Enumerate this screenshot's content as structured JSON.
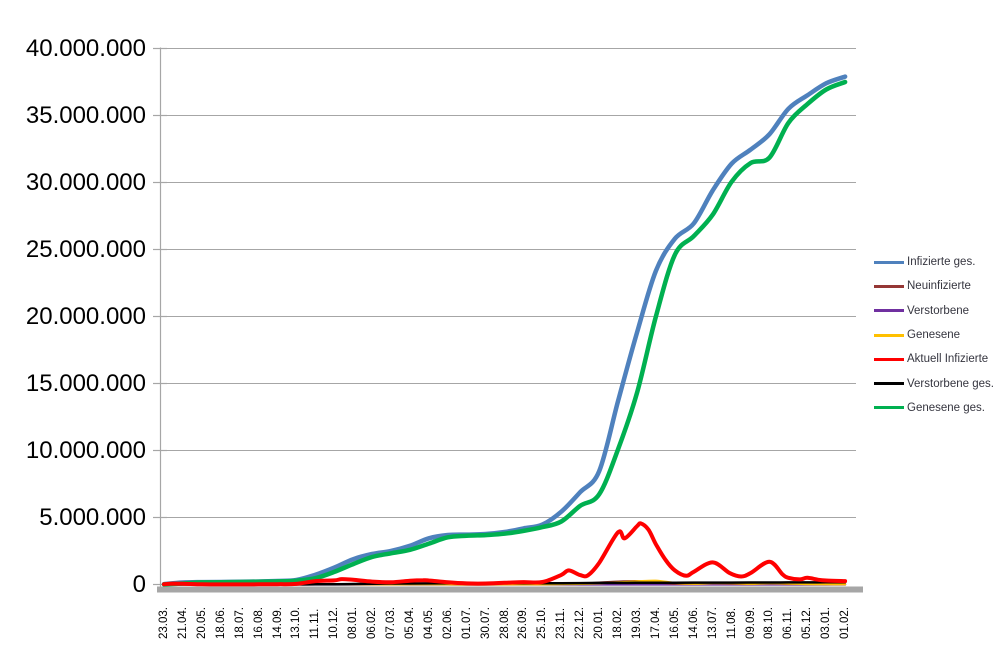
{
  "chart_data": {
    "type": "line",
    "title": "",
    "xlabel": "",
    "ylabel": "",
    "grid": "horizontal",
    "legend_position": "right",
    "ylim": [
      0,
      40000000
    ],
    "y_tick_step": 5000000,
    "y_tick_labels": [
      "0",
      "5.000.000",
      "10.000.000",
      "15.000.000",
      "20.000.000",
      "25.000.000",
      "30.000.000",
      "35.000.000",
      "40.000.000"
    ],
    "x_tick_labels": [
      "23.03.",
      "21.04.",
      "20.05.",
      "18.06.",
      "18.07.",
      "16.08.",
      "14.09.",
      "13.10.",
      "11.11.",
      "10.12.",
      "08.01.",
      "06.02.",
      "07.03.",
      "05.04.",
      "04.05.",
      "02.06.",
      "01.07.",
      "30.07.",
      "28.08.",
      "26.09.",
      "25.10.",
      "23.11.",
      "22.12.",
      "20.01.",
      "18.02.",
      "19.03.",
      "17.04.",
      "16.05.",
      "14.06.",
      "13.07.",
      "11.08.",
      "09.09.",
      "08.10.",
      "06.11.",
      "05.12.",
      "03.01.",
      "01.02."
    ],
    "axis_color": "#a6a6a6",
    "gridline_color": "#a6a6a6",
    "series": [
      {
        "name": "Infizierte ges.",
        "color": "#4F81BD",
        "width": 4.5,
        "points": [
          [
            0,
            30000
          ],
          [
            1,
            148000
          ],
          [
            2,
            178000
          ],
          [
            3,
            190000
          ],
          [
            4,
            202000
          ],
          [
            5,
            226000
          ],
          [
            6,
            261000
          ],
          [
            7,
            335000
          ],
          [
            8,
            727000
          ],
          [
            9,
            1261000
          ],
          [
            10,
            1891000
          ],
          [
            11,
            2276000
          ],
          [
            12,
            2505000
          ],
          [
            13,
            2885000
          ],
          [
            14,
            3448000
          ],
          [
            15,
            3693000
          ],
          [
            16,
            3727000
          ],
          [
            17,
            3770000
          ],
          [
            18,
            3920000
          ],
          [
            19,
            4185000
          ],
          [
            20,
            4472000
          ],
          [
            21,
            5430000
          ],
          [
            22,
            6894000
          ],
          [
            23,
            8460000
          ],
          [
            24,
            13700000
          ],
          [
            25,
            18800000
          ],
          [
            26,
            23400000
          ],
          [
            27,
            25800000
          ],
          [
            28,
            26950000
          ],
          [
            29,
            29400000
          ],
          [
            30,
            31400000
          ],
          [
            31,
            32450000
          ],
          [
            32,
            33600000
          ],
          [
            33,
            35500000
          ],
          [
            34,
            36500000
          ],
          [
            35,
            37400000
          ],
          [
            36,
            37900000
          ]
        ]
      },
      {
        "name": "Neuinfizierte",
        "color": "#953735",
        "width": 2.2,
        "points": [
          [
            0,
            4000
          ],
          [
            1,
            2000
          ],
          [
            2,
            700
          ],
          [
            3,
            500
          ],
          [
            4,
            500
          ],
          [
            5,
            1500
          ],
          [
            6,
            1800
          ],
          [
            7,
            7000
          ],
          [
            8,
            21000
          ],
          [
            9,
            26000
          ],
          [
            10,
            22000
          ],
          [
            11,
            10000
          ],
          [
            12,
            9000
          ],
          [
            13,
            18000
          ],
          [
            14,
            16000
          ],
          [
            15,
            5000
          ],
          [
            16,
            1000
          ],
          [
            17,
            2500
          ],
          [
            18,
            9000
          ],
          [
            19,
            8000
          ],
          [
            20,
            12000
          ],
          [
            21,
            50000
          ],
          [
            22,
            45000
          ],
          [
            23,
            140000
          ],
          [
            24,
            220000
          ],
          [
            25,
            250000
          ],
          [
            26,
            165000
          ],
          [
            27,
            55000
          ],
          [
            28,
            50000
          ],
          [
            29,
            120000
          ],
          [
            30,
            65000
          ],
          [
            31,
            40000
          ],
          [
            32,
            110000
          ],
          [
            33,
            40000
          ],
          [
            34,
            32000
          ],
          [
            35,
            18000
          ],
          [
            36,
            14000
          ]
        ]
      },
      {
        "name": "Verstorbene",
        "color": "#7030A0",
        "width": 2.2,
        "points": [
          [
            0,
            300
          ],
          [
            1,
            250
          ],
          [
            2,
            60
          ],
          [
            3,
            20
          ],
          [
            4,
            10
          ],
          [
            5,
            10
          ],
          [
            6,
            10
          ],
          [
            7,
            30
          ],
          [
            8,
            150
          ],
          [
            9,
            450
          ],
          [
            10,
            900
          ],
          [
            11,
            650
          ],
          [
            12,
            250
          ],
          [
            13,
            200
          ],
          [
            14,
            250
          ],
          [
            15,
            100
          ],
          [
            16,
            60
          ],
          [
            17,
            30
          ],
          [
            18,
            40
          ],
          [
            19,
            60
          ],
          [
            20,
            80
          ],
          [
            21,
            200
          ],
          [
            22,
            350
          ],
          [
            23,
            180
          ],
          [
            24,
            200
          ],
          [
            25,
            250
          ],
          [
            26,
            280
          ],
          [
            27,
            150
          ],
          [
            28,
            100
          ],
          [
            29,
            110
          ],
          [
            30,
            130
          ],
          [
            31,
            120
          ],
          [
            32,
            130
          ],
          [
            33,
            140
          ],
          [
            34,
            160
          ],
          [
            35,
            180
          ],
          [
            36,
            140
          ]
        ]
      },
      {
        "name": "Genesene",
        "color": "#FFC000",
        "width": 2.2,
        "points": [
          [
            0,
            2000
          ],
          [
            1,
            3500
          ],
          [
            2,
            2000
          ],
          [
            3,
            600
          ],
          [
            4,
            400
          ],
          [
            5,
            900
          ],
          [
            6,
            1300
          ],
          [
            7,
            3500
          ],
          [
            8,
            13000
          ],
          [
            9,
            21000
          ],
          [
            10,
            24000
          ],
          [
            11,
            14000
          ],
          [
            12,
            8000
          ],
          [
            13,
            14000
          ],
          [
            14,
            17000
          ],
          [
            15,
            9000
          ],
          [
            16,
            2500
          ],
          [
            17,
            1800
          ],
          [
            18,
            6500
          ],
          [
            19,
            7500
          ],
          [
            20,
            9000
          ],
          [
            21,
            30000
          ],
          [
            22,
            42000
          ],
          [
            23,
            90000
          ],
          [
            24,
            160000
          ],
          [
            25,
            230000
          ],
          [
            26,
            280000
          ],
          [
            27,
            120000
          ],
          [
            28,
            55000
          ],
          [
            29,
            95000
          ],
          [
            30,
            100000
          ],
          [
            31,
            55000
          ],
          [
            32,
            90000
          ],
          [
            33,
            75000
          ],
          [
            34,
            40000
          ],
          [
            35,
            24000
          ],
          [
            36,
            17000
          ]
        ]
      },
      {
        "name": "Aktuell Infizierte",
        "color": "#FF0000",
        "width": 4,
        "points": [
          [
            0,
            25000
          ],
          [
            0.5,
            65000
          ],
          [
            1,
            58000
          ],
          [
            2,
            15000
          ],
          [
            3,
            8000
          ],
          [
            4,
            7000
          ],
          [
            5,
            14000
          ],
          [
            6,
            22000
          ],
          [
            7,
            45000
          ],
          [
            8,
            250000
          ],
          [
            9,
            305000
          ],
          [
            9.4,
            400000
          ],
          [
            10,
            350000
          ],
          [
            11,
            215000
          ],
          [
            12,
            165000
          ],
          [
            13,
            280000
          ],
          [
            13.7,
            315000
          ],
          [
            14,
            300000
          ],
          [
            15,
            165000
          ],
          [
            16,
            85000
          ],
          [
            17,
            72000
          ],
          [
            18,
            125000
          ],
          [
            19,
            180000
          ],
          [
            20,
            185000
          ],
          [
            21,
            720000
          ],
          [
            21.4,
            1050000
          ],
          [
            22,
            700000
          ],
          [
            22.4,
            680000
          ],
          [
            23,
            1610000
          ],
          [
            24,
            3900000
          ],
          [
            24.35,
            3450000
          ],
          [
            25,
            4350000
          ],
          [
            25.2,
            4560000
          ],
          [
            25.6,
            4100000
          ],
          [
            26,
            3000000
          ],
          [
            26.5,
            1850000
          ],
          [
            27,
            1050000
          ],
          [
            27.6,
            650000
          ],
          [
            28,
            950000
          ],
          [
            29,
            1650000
          ],
          [
            29.9,
            850000
          ],
          [
            30.5,
            600000
          ],
          [
            31,
            850000
          ],
          [
            32,
            1700000
          ],
          [
            32.7,
            750000
          ],
          [
            33,
            500000
          ],
          [
            33.6,
            380000
          ],
          [
            34,
            500000
          ],
          [
            34.6,
            350000
          ],
          [
            35,
            300000
          ],
          [
            36,
            250000
          ]
        ]
      },
      {
        "name": "Verstorbene ges.",
        "color": "#000000",
        "width": 2.5,
        "points": [
          [
            0,
            200
          ],
          [
            1,
            5000
          ],
          [
            2,
            8000
          ],
          [
            3,
            8900
          ],
          [
            4,
            9100
          ],
          [
            5,
            9250
          ],
          [
            6,
            9400
          ],
          [
            7,
            9700
          ],
          [
            8,
            12000
          ],
          [
            9,
            20000
          ],
          [
            10,
            38000
          ],
          [
            11,
            61000
          ],
          [
            12,
            72000
          ],
          [
            13,
            77000
          ],
          [
            14,
            84000
          ],
          [
            15,
            88500
          ],
          [
            16,
            91000
          ],
          [
            17,
            91700
          ],
          [
            18,
            92200
          ],
          [
            19,
            93000
          ],
          [
            20,
            95000
          ],
          [
            21,
            99700
          ],
          [
            22,
            108000
          ],
          [
            23,
            116000
          ],
          [
            24,
            121000
          ],
          [
            25,
            126500
          ],
          [
            26,
            133000
          ],
          [
            27,
            137500
          ],
          [
            28,
            140000
          ],
          [
            29,
            142000
          ],
          [
            30,
            144800
          ],
          [
            31,
            147000
          ],
          [
            32,
            150000
          ],
          [
            33,
            153000
          ],
          [
            34,
            157500
          ],
          [
            35,
            162200
          ],
          [
            36,
            165500
          ]
        ]
      },
      {
        "name": "Genesene ges.",
        "color": "#00B050",
        "width": 4.5,
        "points": [
          [
            0,
            5000
          ],
          [
            1,
            77000
          ],
          [
            2,
            158000
          ],
          [
            3,
            175000
          ],
          [
            4,
            188000
          ],
          [
            5,
            206000
          ],
          [
            6,
            233000
          ],
          [
            7,
            287000
          ],
          [
            8,
            468000
          ],
          [
            9,
            940000
          ],
          [
            10,
            1525000
          ],
          [
            11,
            2050000
          ],
          [
            12,
            2330000
          ],
          [
            13,
            2590000
          ],
          [
            14,
            3050000
          ],
          [
            15,
            3520000
          ],
          [
            16,
            3640000
          ],
          [
            17,
            3690000
          ],
          [
            18,
            3790000
          ],
          [
            19,
            4000000
          ],
          [
            20,
            4280000
          ],
          [
            21,
            4700000
          ],
          [
            22,
            5870000
          ],
          [
            23,
            6730000
          ],
          [
            24,
            10100000
          ],
          [
            25,
            14300000
          ],
          [
            26,
            20000000
          ],
          [
            27,
            24600000
          ],
          [
            28,
            26000000
          ],
          [
            29,
            27600000
          ],
          [
            30,
            30050000
          ],
          [
            31,
            31450000
          ],
          [
            32,
            31850000
          ],
          [
            33,
            34450000
          ],
          [
            34,
            35840000
          ],
          [
            35,
            36940000
          ],
          [
            36,
            37500000
          ]
        ]
      }
    ],
    "z_order": [
      2,
      1,
      3,
      5,
      0,
      6,
      4
    ]
  },
  "legend": {
    "items": [
      {
        "label": "Infizierte ges."
      },
      {
        "label": "Neuinfizierte"
      },
      {
        "label": "Verstorbene"
      },
      {
        "label": "Genesene"
      },
      {
        "label": "Aktuell Infizierte"
      },
      {
        "label": "Verstorbene ges."
      },
      {
        "label": "Genesene ges."
      }
    ]
  }
}
